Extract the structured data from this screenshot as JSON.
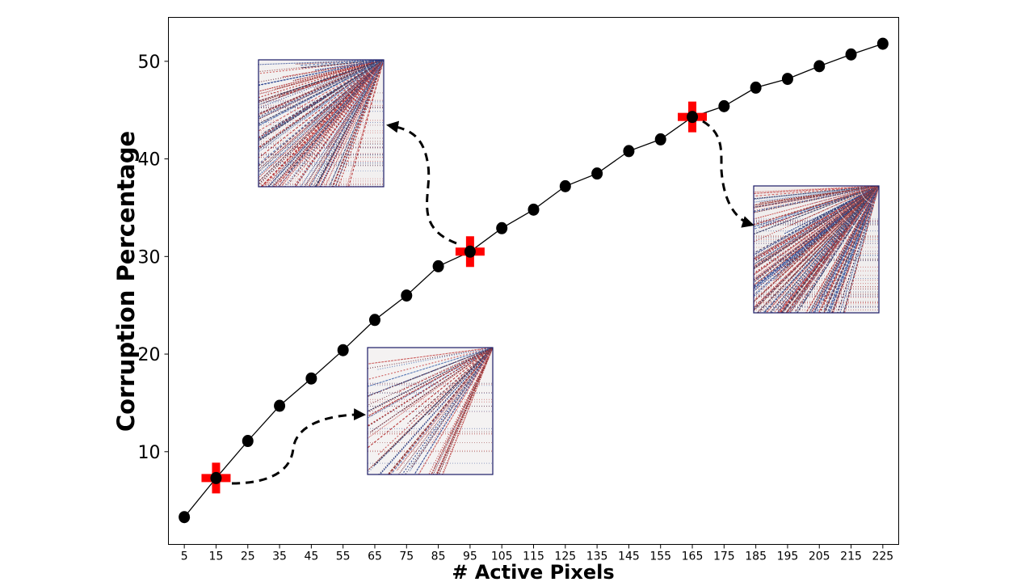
{
  "chart_data": {
    "type": "line",
    "xlabel": "# Active Pixels",
    "ylabel": "Corruption Percentage",
    "title": "",
    "x": [
      5,
      15,
      25,
      35,
      45,
      55,
      65,
      75,
      85,
      95,
      105,
      115,
      125,
      135,
      145,
      155,
      165,
      175,
      185,
      195,
      205,
      215,
      225
    ],
    "series": [
      {
        "values": [
          3.3,
          7.3,
          11.1,
          14.7,
          17.5,
          20.4,
          23.5,
          26.0,
          29.0,
          30.5,
          32.9,
          34.8,
          37.2,
          38.5,
          40.8,
          42.0,
          44.3,
          45.4,
          47.3,
          48.2,
          49.5,
          50.7,
          51.8
        ],
        "color": "#000000",
        "marker": "circle"
      }
    ],
    "xticks": [
      "5",
      "15",
      "25",
      "35",
      "45",
      "55",
      "65",
      "75",
      "85",
      "95",
      "105",
      "115",
      "125",
      "135",
      "145",
      "155",
      "165",
      "175",
      "185",
      "195",
      "205",
      "215",
      "225"
    ],
    "yticks": [
      "10",
      "20",
      "30",
      "40",
      "50"
    ],
    "xlim": [
      0,
      230
    ],
    "ylim": [
      0.5,
      54.5
    ],
    "grid": false,
    "highlighted_points": [
      {
        "x": 15,
        "y": 7.3,
        "marker": "red-plus",
        "inset": "lower-middle"
      },
      {
        "x": 95,
        "y": 30.5,
        "marker": "red-plus",
        "inset": "upper-left"
      },
      {
        "x": 165,
        "y": 44.3,
        "marker": "red-plus",
        "inset": "right"
      }
    ],
    "colors": {
      "line": "#000000",
      "highlight": "#ff0000",
      "inset_border": "#1a1a66"
    }
  }
}
